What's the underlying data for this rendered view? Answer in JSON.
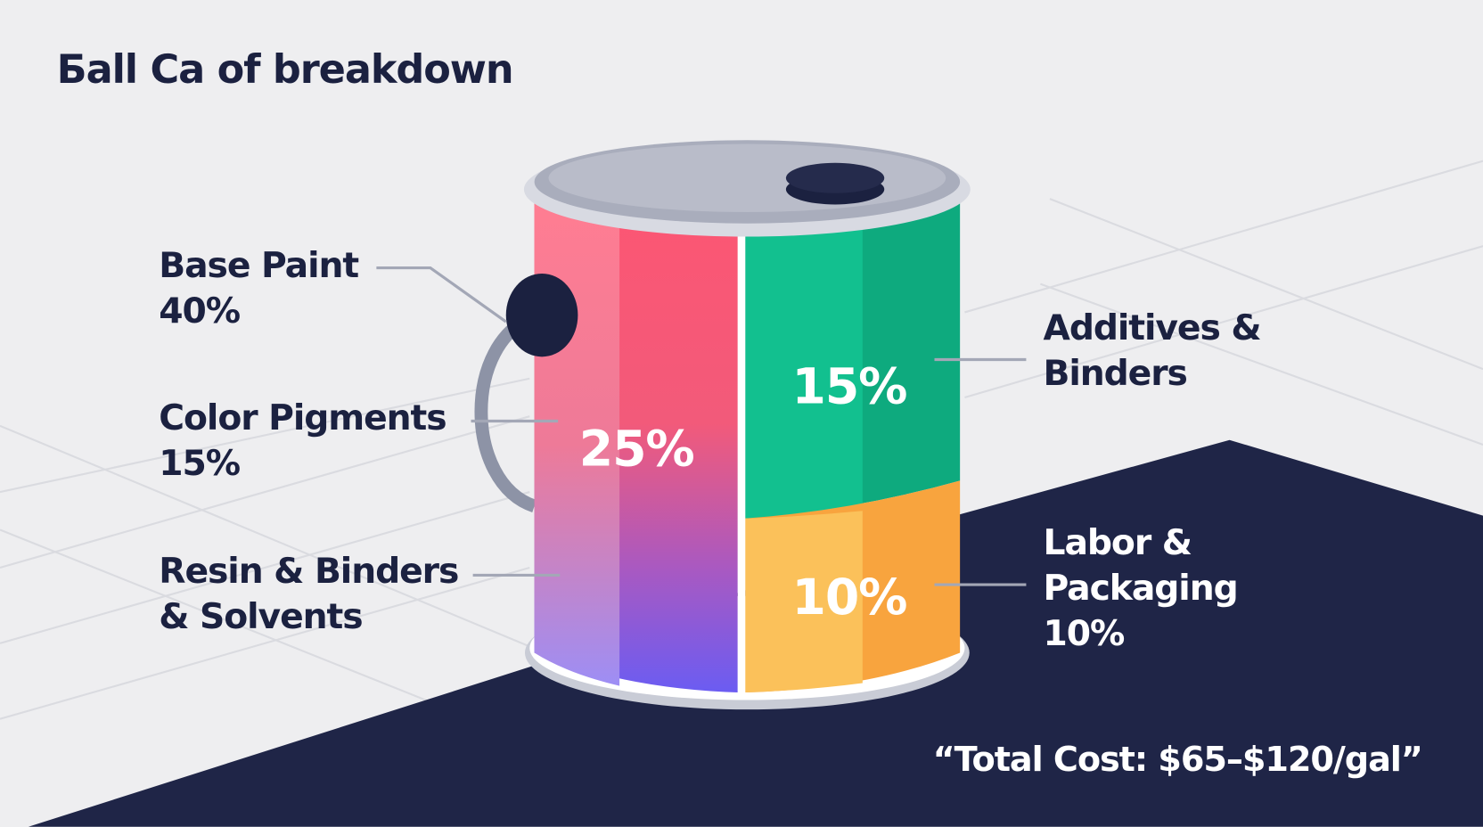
{
  "title": "Бall Ca of breakdown",
  "left_callouts": [
    {
      "lines": [
        "Base Paint"
      ],
      "value": "40%"
    },
    {
      "lines": [
        "Color Pigments"
      ],
      "value": "15%"
    },
    {
      "lines": [
        "Resin & Binders",
        "& Solvents"
      ]
    }
  ],
  "right_callouts": [
    {
      "lines": [
        "Additives &",
        "Binders"
      ]
    },
    {
      "lines": [
        "Labor &",
        "Packaging"
      ],
      "value": "10%"
    }
  ],
  "can_labels": [
    "25%",
    "15%",
    "10%"
  ],
  "total": "“Total Cost: $65–$120/gal”"
}
